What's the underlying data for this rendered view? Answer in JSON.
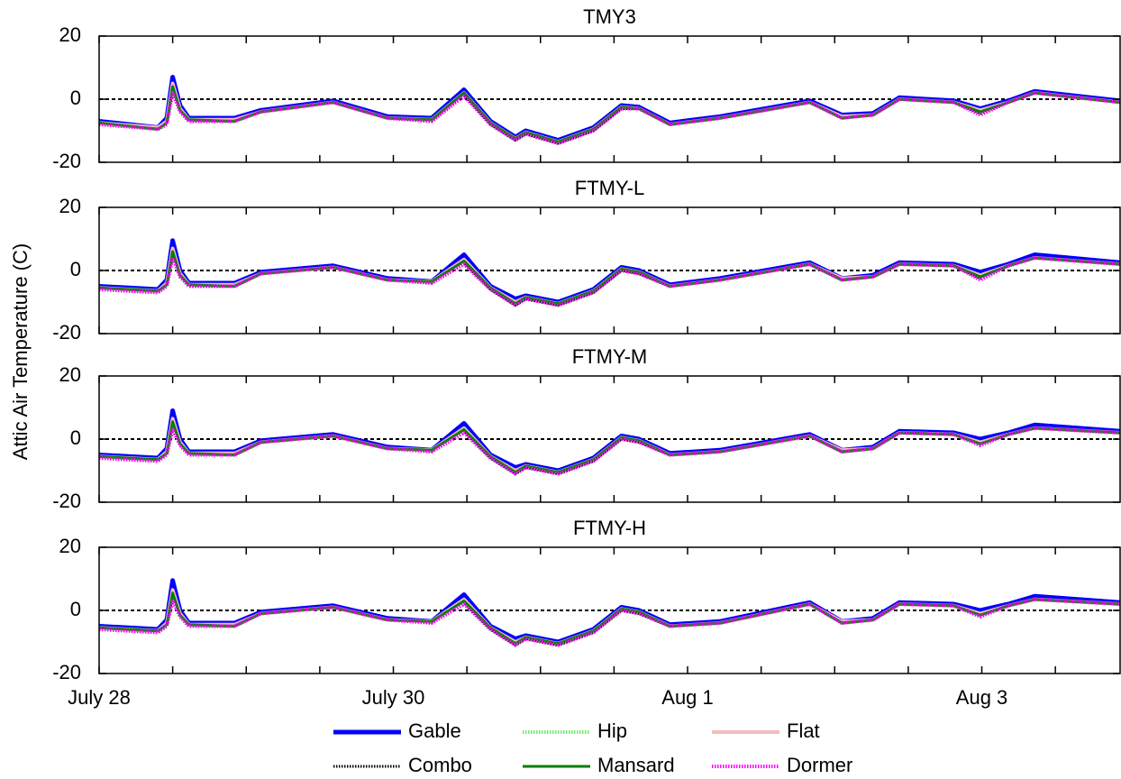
{
  "chart_data": {
    "type": "line",
    "ylabel": "Attic Air Temperature (C)",
    "x": [
      0,
      0.4,
      0.46,
      0.5,
      0.55,
      0.61,
      0.92,
      1.1,
      1.59,
      1.96,
      2.26,
      2.48,
      2.66,
      2.83,
      2.9,
      3.12,
      3.36,
      3.55,
      3.67,
      3.88,
      4.22,
      4.83,
      5.05,
      5.26,
      5.44,
      5.81,
      5.99,
      6.18,
      6.36,
      6.94
    ],
    "xlim": [
      0,
      6.94
    ],
    "xticks": [
      {
        "value": 0,
        "label": "July 28"
      },
      0.5,
      1,
      1.5,
      {
        "value": 2,
        "label": "July 30"
      },
      2.5,
      3,
      3.5,
      {
        "value": 4,
        "label": "Aug 1"
      },
      4.5,
      5,
      5.5,
      {
        "value": 6,
        "label": "Aug 3"
      },
      6.5
    ],
    "series": [
      {
        "name": "Gable",
        "color": "#0000ff",
        "style": "solid",
        "width": 5
      },
      {
        "name": "Hip",
        "color": "#66ee66",
        "style": "dotted",
        "width": 4
      },
      {
        "name": "Flat",
        "color": "#f5bcbc",
        "style": "solid",
        "width": 4
      },
      {
        "name": "Combo",
        "color": "#000000",
        "style": "dotted",
        "width": 3
      },
      {
        "name": "Mansard",
        "color": "#008000",
        "style": "solid",
        "width": 3
      },
      {
        "name": "Dormer",
        "color": "#ff00ff",
        "style": "dotted",
        "width": 4
      }
    ],
    "panels": [
      {
        "title": "TMY3",
        "ylim": [
          -20,
          20
        ],
        "yticks": [
          -20,
          0,
          20
        ],
        "hline": 0,
        "values": [
          [
            -7,
            -9,
            -6,
            7,
            -2,
            -6,
            -6,
            -3.5,
            -0.5,
            -5.5,
            -6,
            3,
            -7,
            -12,
            -10,
            -13,
            -9,
            -2,
            -2.5,
            -7.5,
            -5.5,
            -0.5,
            -5,
            -4.5,
            0.5,
            -0.5,
            -3,
            -0.5,
            2.5,
            -0.5
          ],
          [
            -7.5,
            -9.5,
            -7.5,
            4,
            -3.5,
            -6.5,
            -7,
            -4,
            -1,
            -6,
            -6.5,
            2,
            -7.5,
            -12.5,
            -10.5,
            -13.5,
            -9.5,
            -2.5,
            -3,
            -8,
            -6,
            -1,
            -5.5,
            -5,
            0,
            -1,
            -4,
            -1,
            2,
            -1
          ],
          [
            -7.5,
            -9,
            -7,
            5,
            -3,
            -6.5,
            -6.5,
            -4,
            -1,
            -6,
            -6.5,
            2,
            -7.5,
            -12.5,
            -10.5,
            -13.5,
            -9.5,
            -2.5,
            -3,
            -8,
            -6,
            -1,
            -5.5,
            -5,
            0,
            -1,
            -3.5,
            -1,
            2,
            -1
          ],
          [
            -8,
            -9.5,
            -7.5,
            3,
            -3.5,
            -7,
            -7,
            -4,
            -1,
            -6,
            -7,
            1.5,
            -8,
            -13,
            -11,
            -14,
            -10,
            -3,
            -3,
            -8,
            -6,
            -1,
            -6,
            -5,
            0,
            -1,
            -4.5,
            -1,
            2,
            -1
          ],
          [
            -7.5,
            -9.5,
            -7.5,
            4,
            -3.5,
            -6.5,
            -7,
            -4,
            -1,
            -6,
            -6.5,
            2,
            -7.5,
            -12.5,
            -10.5,
            -13.5,
            -9.5,
            -2.5,
            -3,
            -8,
            -6,
            -1,
            -6,
            -5,
            0,
            -1,
            -4,
            -1,
            2,
            -1
          ],
          [
            -8,
            -9.5,
            -8,
            2,
            -4,
            -7,
            -7,
            -4,
            -1,
            -6,
            -7,
            1,
            -8,
            -13,
            -11,
            -14,
            -10,
            -3,
            -3,
            -8,
            -6,
            -1,
            -6,
            -5,
            0,
            -1,
            -5,
            -1,
            2,
            -1
          ]
        ]
      },
      {
        "title": "FTMY-L",
        "ylim": [
          -20,
          20
        ],
        "yticks": [
          -20,
          0,
          20
        ],
        "hline": 0,
        "values": [
          [
            -5,
            -6,
            -3,
            9.5,
            0,
            -4,
            -4,
            -0.5,
            1.5,
            -2.5,
            -3.5,
            5,
            -5,
            -9,
            -8,
            -10,
            -6,
            1,
            0,
            -4.5,
            -2.5,
            2.5,
            -2.5,
            -1.5,
            2.5,
            2,
            -0.5,
            2,
            5,
            2.5
          ],
          [
            -5.5,
            -6.5,
            -4.5,
            6,
            -1.5,
            -4.5,
            -5,
            -1,
            1,
            -3,
            -3.5,
            3,
            -5.5,
            -10.5,
            -8.5,
            -10.5,
            -6.5,
            0.5,
            -0.5,
            -5,
            -3,
            2,
            -3,
            -2,
            2,
            1.5,
            -2,
            1.5,
            4,
            2
          ],
          [
            -5.5,
            -6.5,
            -4,
            7,
            -1,
            -4.5,
            -4.5,
            -1,
            1,
            -3,
            -3.5,
            3.5,
            -5.5,
            -10,
            -8.5,
            -10.5,
            -6.5,
            0.5,
            -0.5,
            -5,
            -3,
            2,
            -2.5,
            -2,
            2,
            1.5,
            -1.5,
            1.5,
            4,
            2
          ],
          [
            -6,
            -7,
            -4.5,
            5,
            -1.5,
            -5,
            -5,
            -1,
            1,
            -3,
            -4,
            2.5,
            -6,
            -11,
            -9,
            -11,
            -7,
            0,
            -1,
            -5,
            -3,
            2,
            -3,
            -2,
            2,
            1.5,
            -2.5,
            1.5,
            4,
            2
          ],
          [
            -5.5,
            -6.5,
            -4.5,
            6,
            -1.5,
            -4.5,
            -5,
            -1,
            1,
            -3,
            -3.5,
            3,
            -5.5,
            -10.5,
            -8.5,
            -10.5,
            -6.5,
            0.5,
            -0.5,
            -5,
            -3,
            2,
            -3,
            -2,
            2,
            1.5,
            -2,
            1.5,
            4,
            2
          ],
          [
            -6,
            -7,
            -5,
            4,
            -2,
            -5,
            -5,
            -1,
            1,
            -3,
            -4,
            2,
            -6,
            -11,
            -9,
            -11,
            -7,
            0,
            -1,
            -5,
            -3,
            2,
            -3,
            -2,
            2,
            1.5,
            -3,
            1.5,
            4,
            2
          ]
        ]
      },
      {
        "title": "FTMY-M",
        "ylim": [
          -20,
          20
        ],
        "yticks": [
          -20,
          0,
          20
        ],
        "hline": 0,
        "values": [
          [
            -5,
            -6,
            -3,
            9,
            0,
            -4,
            -4,
            -0.5,
            1.5,
            -2.5,
            -3.5,
            5,
            -5,
            -9,
            -8,
            -10,
            -6,
            1,
            0,
            -4.5,
            -3.5,
            1.5,
            -3.5,
            -2.5,
            2.5,
            2,
            0,
            2,
            4.5,
            2.5
          ],
          [
            -5.5,
            -6.5,
            -4.5,
            5.5,
            -1.5,
            -4.5,
            -5,
            -1,
            1,
            -3,
            -3.5,
            3,
            -5.5,
            -10.5,
            -8.5,
            -10.5,
            -6.5,
            0.5,
            -0.5,
            -5,
            -4,
            1,
            -4,
            -3,
            2,
            1.5,
            -1.5,
            1.5,
            3.5,
            2
          ],
          [
            -5.5,
            -6.5,
            -4,
            6.5,
            -1,
            -4.5,
            -4.5,
            -1,
            1,
            -3,
            -3.5,
            3.5,
            -5.5,
            -10,
            -8.5,
            -10.5,
            -6.5,
            0.5,
            -0.5,
            -5,
            -4,
            1,
            -3.5,
            -3,
            2,
            1.5,
            -1,
            1.5,
            3.5,
            2
          ],
          [
            -6,
            -7,
            -4.5,
            4.5,
            -1.5,
            -5,
            -5,
            -1,
            1,
            -3,
            -4,
            2.5,
            -6,
            -11,
            -9,
            -11,
            -7,
            0,
            -1,
            -5,
            -4,
            1,
            -4,
            -3,
            2,
            1.5,
            -1.5,
            1.5,
            3.5,
            2
          ],
          [
            -5.5,
            -6.5,
            -4.5,
            5.5,
            -1.5,
            -4.5,
            -5,
            -1,
            1,
            -3,
            -3.5,
            3,
            -5.5,
            -10.5,
            -8.5,
            -10.5,
            -6.5,
            0.5,
            -0.5,
            -5,
            -4,
            1,
            -4,
            -3,
            2,
            1.5,
            -1.5,
            1.5,
            3.5,
            2
          ],
          [
            -6,
            -7,
            -5,
            3,
            -2,
            -5,
            -5,
            -1,
            1,
            -3,
            -4,
            2,
            -6,
            -11,
            -9,
            -11,
            -7,
            0,
            -1,
            -5,
            -4,
            1,
            -4,
            -3,
            2,
            1.5,
            -2,
            1.5,
            3.5,
            2
          ]
        ]
      },
      {
        "title": "FTMY-H",
        "ylim": [
          -20,
          20
        ],
        "yticks": [
          -20,
          0,
          20
        ],
        "hline": 0,
        "values": [
          [
            -5,
            -6,
            -3,
            9.5,
            0,
            -4,
            -4,
            -0.5,
            1.5,
            -2.5,
            -3.5,
            5,
            -5,
            -9,
            -8,
            -10,
            -6,
            1,
            0,
            -4.5,
            -3.5,
            2.5,
            -3.5,
            -2.5,
            2.5,
            2,
            0,
            2,
            4.5,
            2.5
          ],
          [
            -5.5,
            -6.5,
            -4.5,
            5.5,
            -1.5,
            -4.5,
            -5,
            -1,
            1,
            -3,
            -3.5,
            3,
            -5.5,
            -10.5,
            -8.5,
            -10.5,
            -6.5,
            0.5,
            -0.5,
            -5,
            -4,
            2,
            -4,
            -3,
            2,
            1.5,
            -1.5,
            1.5,
            3.5,
            2
          ],
          [
            -5.5,
            -6.5,
            -4,
            6.5,
            -1,
            -4.5,
            -4.5,
            -1,
            1,
            -3,
            -3.5,
            3.5,
            -5.5,
            -10,
            -8.5,
            -10.5,
            -6.5,
            0.5,
            -0.5,
            -5,
            -4,
            2,
            -3.5,
            -3,
            2,
            1.5,
            -1,
            1.5,
            3.5,
            2
          ],
          [
            -6,
            -7,
            -4.5,
            4.5,
            -1.5,
            -5,
            -5,
            -1,
            1,
            -3,
            -4,
            2.5,
            -6,
            -11,
            -9,
            -11,
            -7,
            0,
            -1,
            -5,
            -4,
            2,
            -4,
            -3,
            2,
            1.5,
            -1.5,
            1.5,
            3.5,
            2
          ],
          [
            -5.5,
            -6.5,
            -4.5,
            5.5,
            -1.5,
            -4.5,
            -5,
            -1,
            1,
            -3,
            -3.5,
            3,
            -5.5,
            -10.5,
            -8.5,
            -10.5,
            -6.5,
            0.5,
            -0.5,
            -5,
            -4,
            2,
            -4,
            -3,
            2,
            1.5,
            -1.5,
            1.5,
            3.5,
            2
          ],
          [
            -6,
            -7,
            -5,
            3,
            -2,
            -5,
            -5,
            -1,
            1,
            -3,
            -4,
            2,
            -6,
            -11,
            -9,
            -11,
            -7,
            0,
            -1,
            -5,
            -4,
            2,
            -4,
            -3,
            2,
            1.5,
            -2,
            1.5,
            3.5,
            2
          ]
        ]
      }
    ]
  }
}
